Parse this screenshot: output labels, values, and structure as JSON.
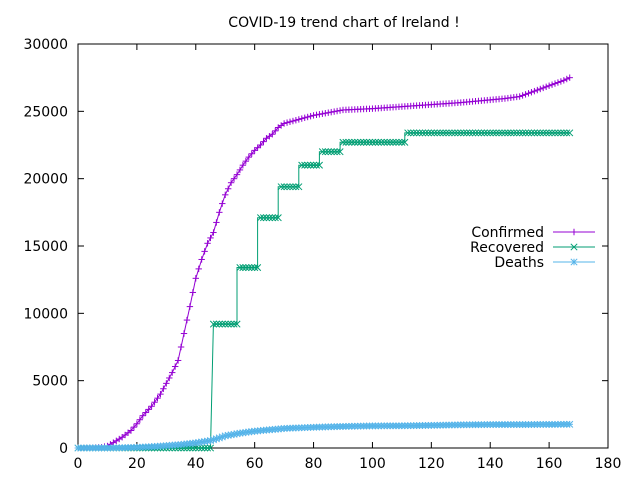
{
  "chart_data": {
    "type": "line",
    "title": "COVID-19 trend chart of Ireland !",
    "xlabel": "",
    "ylabel": "",
    "xlim": [
      0,
      180
    ],
    "ylim": [
      0,
      30000
    ],
    "x_ticks": [
      0,
      20,
      40,
      60,
      80,
      100,
      120,
      140,
      160,
      180
    ],
    "y_ticks": [
      0,
      5000,
      10000,
      15000,
      20000,
      25000,
      30000
    ],
    "grid": false,
    "legend_position": "right",
    "series": [
      {
        "name": "Confirmed",
        "color": "#9400d3",
        "marker": "plus",
        "points": [
          [
            0,
            0
          ],
          [
            5,
            20
          ],
          [
            8,
            60
          ],
          [
            10,
            150
          ],
          [
            12,
            400
          ],
          [
            15,
            800
          ],
          [
            18,
            1300
          ],
          [
            20,
            1800
          ],
          [
            22,
            2400
          ],
          [
            25,
            3100
          ],
          [
            28,
            4000
          ],
          [
            30,
            4800
          ],
          [
            32,
            5600
          ],
          [
            34,
            6500
          ],
          [
            36,
            8500
          ],
          [
            38,
            10500
          ],
          [
            40,
            12600
          ],
          [
            42,
            14000
          ],
          [
            44,
            15200
          ],
          [
            46,
            16000
          ],
          [
            48,
            17500
          ],
          [
            50,
            18800
          ],
          [
            52,
            19700
          ],
          [
            54,
            20300
          ],
          [
            56,
            21000
          ],
          [
            58,
            21600
          ],
          [
            60,
            22100
          ],
          [
            62,
            22500
          ],
          [
            64,
            23000
          ],
          [
            66,
            23300
          ],
          [
            68,
            23800
          ],
          [
            70,
            24100
          ],
          [
            75,
            24400
          ],
          [
            80,
            24700
          ],
          [
            85,
            24900
          ],
          [
            90,
            25100
          ],
          [
            100,
            25200
          ],
          [
            110,
            25350
          ],
          [
            120,
            25500
          ],
          [
            130,
            25650
          ],
          [
            140,
            25850
          ],
          [
            145,
            25950
          ],
          [
            150,
            26100
          ],
          [
            155,
            26500
          ],
          [
            160,
            26900
          ],
          [
            165,
            27300
          ],
          [
            167,
            27500
          ]
        ]
      },
      {
        "name": "Recovered",
        "color": "#009e73",
        "marker": "cross",
        "points": [
          [
            0,
            0
          ],
          [
            45,
            0
          ],
          [
            46,
            9200
          ],
          [
            54,
            9200
          ],
          [
            54,
            13400
          ],
          [
            61,
            13400
          ],
          [
            61,
            17100
          ],
          [
            68,
            17100
          ],
          [
            68,
            19400
          ],
          [
            75,
            19400
          ],
          [
            75,
            21000
          ],
          [
            82,
            21000
          ],
          [
            82,
            22000
          ],
          [
            89,
            22000
          ],
          [
            89,
            22700
          ],
          [
            111,
            22700
          ],
          [
            111,
            23400
          ],
          [
            167,
            23400
          ]
        ]
      },
      {
        "name": "Deaths",
        "color": "#56b4e9",
        "marker": "star",
        "points": [
          [
            0,
            0
          ],
          [
            10,
            5
          ],
          [
            15,
            20
          ],
          [
            20,
            50
          ],
          [
            25,
            100
          ],
          [
            30,
            170
          ],
          [
            35,
            260
          ],
          [
            40,
            380
          ],
          [
            45,
            550
          ],
          [
            48,
            750
          ],
          [
            50,
            900
          ],
          [
            55,
            1100
          ],
          [
            60,
            1250
          ],
          [
            65,
            1350
          ],
          [
            70,
            1450
          ],
          [
            80,
            1540
          ],
          [
            90,
            1600
          ],
          [
            100,
            1640
          ],
          [
            110,
            1650
          ],
          [
            120,
            1680
          ],
          [
            130,
            1720
          ],
          [
            140,
            1740
          ],
          [
            150,
            1740
          ],
          [
            160,
            1750
          ],
          [
            167,
            1760
          ]
        ]
      }
    ]
  }
}
